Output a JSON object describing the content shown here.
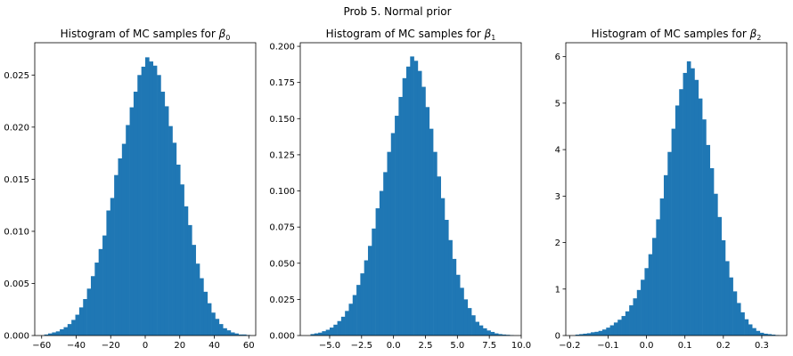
{
  "figure": {
    "suptitle": "Prob 5. Normal prior",
    "bar_color": "#1f77b4"
  },
  "chart_data": [
    {
      "type": "bar",
      "title": "Histogram of MC samples for β0",
      "title_prefix": "Histogram of MC samples for ",
      "title_symbol": "β",
      "title_subscript": "0",
      "xlim": [
        -64,
        64
      ],
      "ylim": [
        0,
        0.0281
      ],
      "xticks": [
        -60,
        -40,
        -20,
        0,
        20,
        40,
        60
      ],
      "xtick_labels": [
        "−60",
        "−40",
        "−20",
        "0",
        "20",
        "40",
        "60"
      ],
      "yticks": [
        0,
        0.005,
        0.01,
        0.015,
        0.02,
        0.025
      ],
      "ytick_labels": [
        "0.000",
        "0.005",
        "0.010",
        "0.015",
        "0.020",
        "0.025"
      ],
      "bin_edges": [
        -58.5,
        -56.25,
        -54,
        -51.75,
        -49.5,
        -47.25,
        -45,
        -42.75,
        -40.5,
        -38.25,
        -36,
        -33.75,
        -31.5,
        -29.25,
        -27,
        -24.75,
        -22.5,
        -20.25,
        -18,
        -15.75,
        -13.5,
        -11.25,
        -9,
        -6.75,
        -4.5,
        -2.25,
        0,
        2.25,
        4.5,
        6.75,
        9,
        11.25,
        13.5,
        15.75,
        18,
        20.25,
        22.5,
        24.75,
        27,
        29.25,
        31.5,
        33.75,
        36,
        38.25,
        40.5,
        42.75,
        45,
        47.25,
        49.5,
        51.75,
        54,
        56.25,
        58.5,
        60.75
      ],
      "values": [
        0.0001,
        0.0002,
        0.0003,
        0.0004,
        0.0006,
        0.0008,
        0.0011,
        0.0015,
        0.002,
        0.0027,
        0.0035,
        0.0045,
        0.0057,
        0.007,
        0.0083,
        0.0096,
        0.012,
        0.0132,
        0.0154,
        0.017,
        0.0184,
        0.0202,
        0.0219,
        0.0234,
        0.025,
        0.0258,
        0.0267,
        0.0263,
        0.0259,
        0.025,
        0.0234,
        0.022,
        0.0201,
        0.0185,
        0.0164,
        0.0145,
        0.0124,
        0.0106,
        0.0087,
        0.0069,
        0.0055,
        0.0042,
        0.0031,
        0.0022,
        0.0016,
        0.0011,
        0.0007,
        0.0005,
        0.0003,
        0.0002,
        0.0001,
        0.0001,
        5e-05
      ]
    },
    {
      "type": "bar",
      "title": "Histogram of MC samples for β1",
      "title_prefix": "Histogram of MC samples for ",
      "title_symbol": "β",
      "title_subscript": "1",
      "xlim": [
        -7.3,
        10.0
      ],
      "ylim": [
        0,
        0.2025
      ],
      "xticks": [
        -5,
        -2.5,
        0,
        2.5,
        5,
        7.5,
        10
      ],
      "xtick_labels": [
        "−5.0",
        "−2.5",
        "0.0",
        "2.5",
        "5.0",
        "7.5",
        "10.0"
      ],
      "yticks": [
        0,
        0.025,
        0.05,
        0.075,
        0.1,
        0.125,
        0.15,
        0.175,
        0.2
      ],
      "ytick_labels": [
        "0.000",
        "0.025",
        "0.050",
        "0.075",
        "0.100",
        "0.125",
        "0.150",
        "0.175",
        "0.200"
      ],
      "bin_edges": [
        -6.5,
        -6.2,
        -5.9,
        -5.6,
        -5.3,
        -5,
        -4.7,
        -4.4,
        -4.1,
        -3.8,
        -3.5,
        -3.2,
        -2.9,
        -2.6,
        -2.3,
        -2,
        -1.7,
        -1.4,
        -1.1,
        -0.8,
        -0.5,
        -0.2,
        0.1,
        0.4,
        0.7,
        1,
        1.3,
        1.6,
        1.9,
        2.2,
        2.5,
        2.8,
        3.1,
        3.4,
        3.7,
        4,
        4.3,
        4.6,
        4.9,
        5.2,
        5.5,
        5.8,
        6.1,
        6.4,
        6.7,
        7,
        7.3,
        7.6,
        7.9,
        8.2,
        8.5,
        8.8,
        9.1,
        9.4
      ],
      "values": [
        0.001,
        0.0015,
        0.002,
        0.003,
        0.004,
        0.0055,
        0.0075,
        0.01,
        0.013,
        0.017,
        0.022,
        0.028,
        0.035,
        0.043,
        0.052,
        0.062,
        0.074,
        0.088,
        0.1,
        0.113,
        0.127,
        0.14,
        0.152,
        0.165,
        0.178,
        0.186,
        0.193,
        0.19,
        0.183,
        0.172,
        0.158,
        0.143,
        0.127,
        0.11,
        0.095,
        0.08,
        0.066,
        0.053,
        0.042,
        0.033,
        0.025,
        0.019,
        0.014,
        0.0095,
        0.007,
        0.005,
        0.0035,
        0.0025,
        0.0015,
        0.001,
        0.0007,
        0.0005,
        0.0003
      ]
    },
    {
      "type": "bar",
      "title": "Histogram of MC samples for β2",
      "title_prefix": "Histogram of MC samples for ",
      "title_symbol": "β",
      "title_subscript": "2",
      "xlim": [
        -0.21,
        0.365
      ],
      "ylim": [
        0,
        6.3
      ],
      "xticks": [
        -0.2,
        -0.1,
        0,
        0.1,
        0.2,
        0.3
      ],
      "xtick_labels": [
        "−0.2",
        "−0.1",
        "0.0",
        "0.1",
        "0.2",
        "0.3"
      ],
      "yticks": [
        0,
        1,
        2,
        3,
        4,
        5,
        6
      ],
      "ytick_labels": [
        "0",
        "1",
        "2",
        "3",
        "4",
        "5",
        "6"
      ],
      "bin_edges": [
        -0.185,
        -0.175,
        -0.165,
        -0.155,
        -0.145,
        -0.135,
        -0.125,
        -0.115,
        -0.105,
        -0.095,
        -0.085,
        -0.075,
        -0.065,
        -0.055,
        -0.045,
        -0.035,
        -0.025,
        -0.015,
        -0.005,
        0.005,
        0.015,
        0.025,
        0.035,
        0.045,
        0.055,
        0.065,
        0.075,
        0.085,
        0.095,
        0.105,
        0.115,
        0.125,
        0.135,
        0.145,
        0.155,
        0.165,
        0.175,
        0.185,
        0.195,
        0.205,
        0.215,
        0.225,
        0.235,
        0.245,
        0.255,
        0.265,
        0.275,
        0.285,
        0.295,
        0.305,
        0.315,
        0.325,
        0.335,
        0.345
      ],
      "values": [
        0.02,
        0.03,
        0.04,
        0.05,
        0.07,
        0.08,
        0.1,
        0.13,
        0.17,
        0.22,
        0.28,
        0.34,
        0.42,
        0.52,
        0.65,
        0.8,
        0.98,
        1.2,
        1.45,
        1.75,
        2.1,
        2.5,
        2.95,
        3.45,
        3.95,
        4.45,
        4.95,
        5.3,
        5.65,
        5.9,
        5.75,
        5.5,
        5.1,
        4.65,
        4.1,
        3.6,
        3.05,
        2.55,
        2.05,
        1.6,
        1.25,
        0.95,
        0.7,
        0.5,
        0.35,
        0.24,
        0.16,
        0.1,
        0.06,
        0.04,
        0.03,
        0.02,
        0.01
      ]
    }
  ]
}
